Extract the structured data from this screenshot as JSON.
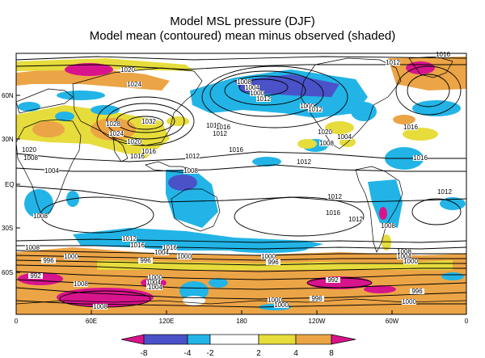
{
  "title_line1": "Model MSL pressure (DJF)",
  "title_line2": "Model mean (contoured)  mean minus observed (shaded)",
  "lat_ticks": [
    "60N",
    "30N",
    "EQ",
    "30S",
    "60S"
  ],
  "lon_ticks": [
    "0",
    "60E",
    "120E",
    "180",
    "120W",
    "60W",
    "0"
  ],
  "colorbar_ticks": [
    "-8",
    "-4",
    "-2",
    "2",
    "4",
    "8"
  ],
  "colors": {
    "neg_strong": "#d8148c",
    "neg_mid": "#4a52c8",
    "neg_weak": "#22b4e6",
    "neutral": "#ffffff",
    "pos_weak": "#e6dc3c",
    "pos_mid": "#eba446",
    "pos_strong": "#d8148c"
  },
  "contour_labels": [
    "1016",
    "1012",
    "1020",
    "1024",
    "1008",
    "1004",
    "1000",
    "1012",
    "1032",
    "1028",
    "1024",
    "1020",
    "1016",
    "1012",
    "1016",
    "1012",
    "1008",
    "1004",
    "1000",
    "1012",
    "1020",
    "1004",
    "1008",
    "1016",
    "1020",
    "1016",
    "1012",
    "1016",
    "1016",
    "1012",
    "1008",
    "1012",
    "1012",
    "1016",
    "1012",
    "1008",
    "1008",
    "1012",
    "1016",
    "1016",
    "1008",
    "1004",
    "1000",
    "996",
    "1000",
    "1008",
    "1004",
    "1000",
    "1000",
    "996",
    "992",
    "996",
    "1000",
    "1004",
    "1008",
    "1008",
    "992",
    "996",
    "1000",
    "996",
    "1000",
    "1004",
    "1008",
    "1000"
  ]
}
